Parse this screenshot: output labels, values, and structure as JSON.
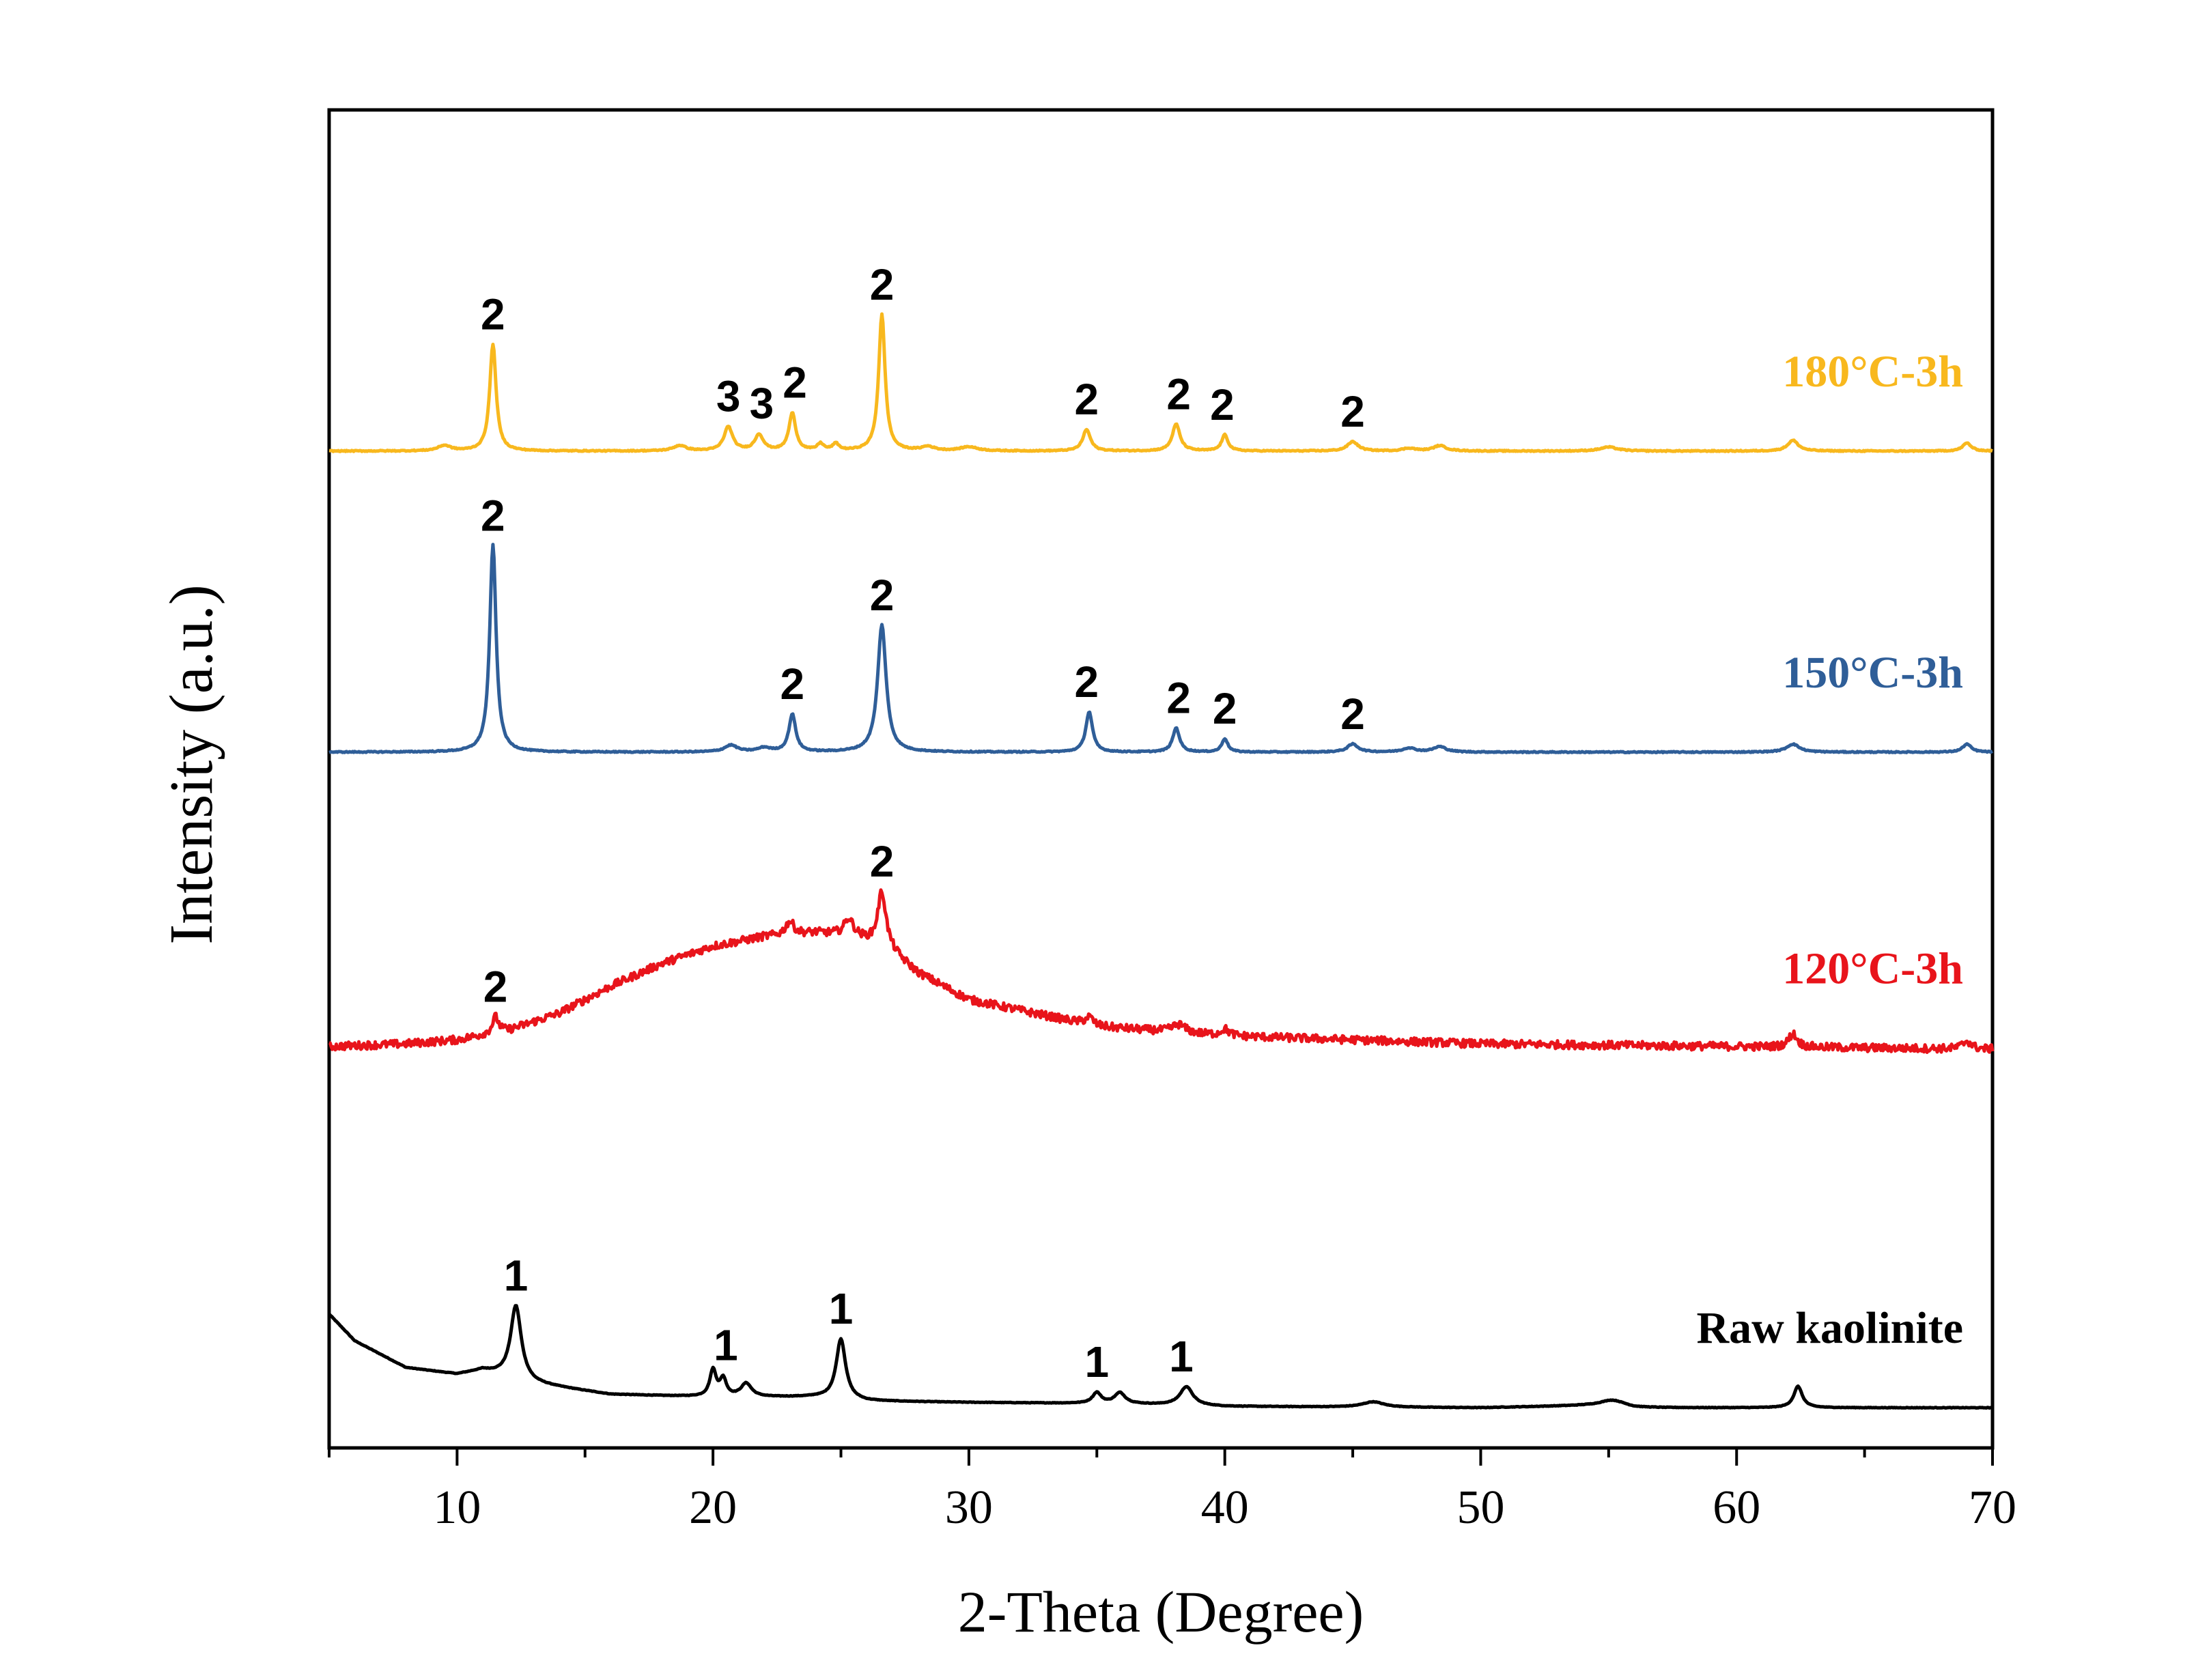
{
  "chart_data": {
    "type": "line",
    "title": "",
    "xlabel": "2-Theta (Degree)",
    "ylabel": "Intensity (a.u.)",
    "xlim": [
      5,
      70
    ],
    "xticks": [
      10,
      20,
      30,
      40,
      50,
      60,
      70
    ],
    "xtick_labels": [
      "10",
      "20",
      "30",
      "40",
      "50",
      "60",
      "70"
    ],
    "ylim": [
      0,
      1000
    ],
    "grid": false,
    "legend": "inline-right",
    "series": [
      {
        "name": "Raw kaolinite",
        "color": "#000000",
        "noise": 0.2,
        "baseline": [
          [
            5,
            100
          ],
          [
            6,
            80
          ],
          [
            8,
            60
          ],
          [
            10,
            55
          ],
          [
            11,
            58
          ],
          [
            13,
            48
          ],
          [
            16,
            40
          ],
          [
            20,
            38
          ],
          [
            24,
            38
          ],
          [
            26,
            35
          ],
          [
            30,
            34
          ],
          [
            36,
            33
          ],
          [
            40,
            31
          ],
          [
            50,
            30
          ],
          [
            55,
            32
          ],
          [
            56,
            30
          ],
          [
            60,
            30
          ],
          [
            70,
            30
          ]
        ],
        "peaks": [
          [
            12.3,
            55,
            0.25
          ],
          [
            20.0,
            20,
            0.15
          ],
          [
            20.4,
            13,
            0.15
          ],
          [
            21.3,
            10,
            0.25
          ],
          [
            25.0,
            45,
            0.22
          ],
          [
            35.0,
            8,
            0.2
          ],
          [
            35.9,
            8,
            0.25
          ],
          [
            38.5,
            14,
            0.3
          ],
          [
            45.8,
            4,
            0.5
          ],
          [
            55.2,
            4,
            0.6
          ],
          [
            62.4,
            16,
            0.2
          ]
        ],
        "labels": [
          {
            "text": "1",
            "x": 12.3
          },
          {
            "text": "1",
            "x": 20.5
          },
          {
            "text": "1",
            "x": 25.0
          },
          {
            "text": "1",
            "x": 35.0
          },
          {
            "text": "1",
            "x": 38.3
          }
        ]
      },
      {
        "name": "120°C-3h",
        "color": "#e8141b",
        "noise": 3.0,
        "baseline": [
          [
            5,
            300
          ],
          [
            8,
            302
          ],
          [
            10,
            305
          ],
          [
            12,
            312
          ],
          [
            14,
            325
          ],
          [
            16,
            345
          ],
          [
            18,
            362
          ],
          [
            20,
            375
          ],
          [
            22,
            382
          ],
          [
            24,
            385
          ],
          [
            25.5,
            383
          ],
          [
            27,
            370
          ],
          [
            28,
            355
          ],
          [
            30,
            335
          ],
          [
            35,
            315
          ],
          [
            40,
            308
          ],
          [
            50,
            302
          ],
          [
            60,
            300
          ],
          [
            70,
            298
          ]
        ],
        "peaks": [
          [
            11.5,
            12,
            0.15
          ],
          [
            23.0,
            10,
            0.2
          ],
          [
            25.3,
            12,
            0.2
          ],
          [
            26.6,
            42,
            0.2
          ],
          [
            34.7,
            6,
            0.2
          ],
          [
            38.2,
            6,
            0.3
          ],
          [
            40.0,
            5,
            0.2
          ],
          [
            62.2,
            10,
            0.2
          ],
          [
            69.0,
            6,
            0.2
          ]
        ],
        "labels": [
          {
            "text": "2",
            "x": 11.5
          },
          {
            "text": "2",
            "x": 26.6
          }
        ]
      },
      {
        "name": "150°C-3h",
        "color": "#2f5e98",
        "noise": 0.4,
        "baseline": [
          [
            5,
            520
          ],
          [
            70,
            520
          ]
        ],
        "peaks": [
          [
            11.4,
            155,
            0.15
          ],
          [
            20.7,
            5,
            0.3
          ],
          [
            22.0,
            3,
            0.3
          ],
          [
            23.1,
            28,
            0.16
          ],
          [
            26.6,
            95,
            0.2
          ],
          [
            34.7,
            30,
            0.16
          ],
          [
            38.1,
            18,
            0.16
          ],
          [
            40.0,
            10,
            0.14
          ],
          [
            45.0,
            6,
            0.25
          ],
          [
            47.2,
            3,
            0.3
          ],
          [
            48.4,
            4,
            0.3
          ],
          [
            62.2,
            6,
            0.3
          ],
          [
            69.0,
            6,
            0.2
          ]
        ],
        "labels": [
          {
            "text": "2",
            "x": 11.4
          },
          {
            "text": "2",
            "x": 23.1
          },
          {
            "text": "2",
            "x": 26.6
          },
          {
            "text": "2",
            "x": 34.6
          },
          {
            "text": "2",
            "x": 38.2
          },
          {
            "text": "2",
            "x": 40.0
          },
          {
            "text": "2",
            "x": 45.0
          }
        ]
      },
      {
        "name": "180°C-3h",
        "color": "#f8b81e",
        "noise": 0.4,
        "baseline": [
          [
            5,
            745
          ],
          [
            70,
            745
          ]
        ],
        "peaks": [
          [
            9.5,
            4,
            0.3
          ],
          [
            11.4,
            80,
            0.15
          ],
          [
            18.7,
            4,
            0.3
          ],
          [
            20.6,
            18,
            0.2
          ],
          [
            21.8,
            12,
            0.2
          ],
          [
            23.1,
            28,
            0.16
          ],
          [
            24.2,
            5,
            0.15
          ],
          [
            24.8,
            5,
            0.15
          ],
          [
            26.6,
            102,
            0.15
          ],
          [
            28.4,
            3,
            0.3
          ],
          [
            30.0,
            3,
            0.4
          ],
          [
            34.6,
            16,
            0.18
          ],
          [
            38.1,
            20,
            0.18
          ],
          [
            40.0,
            12,
            0.15
          ],
          [
            45.0,
            7,
            0.25
          ],
          [
            47.2,
            2,
            0.3
          ],
          [
            48.4,
            4,
            0.3
          ],
          [
            55.0,
            3,
            0.4
          ],
          [
            62.2,
            8,
            0.25
          ],
          [
            69.0,
            6,
            0.2
          ]
        ],
        "labels": [
          {
            "text": "2",
            "x": 11.4
          },
          {
            "text": "3",
            "x": 20.6
          },
          {
            "text": "3",
            "x": 21.9
          },
          {
            "text": "2",
            "x": 23.2
          },
          {
            "text": "2",
            "x": 26.6
          },
          {
            "text": "2",
            "x": 34.6
          },
          {
            "text": "2",
            "x": 38.2
          },
          {
            "text": "2",
            "x": 39.9
          },
          {
            "text": "2",
            "x": 45.0
          }
        ]
      }
    ]
  }
}
